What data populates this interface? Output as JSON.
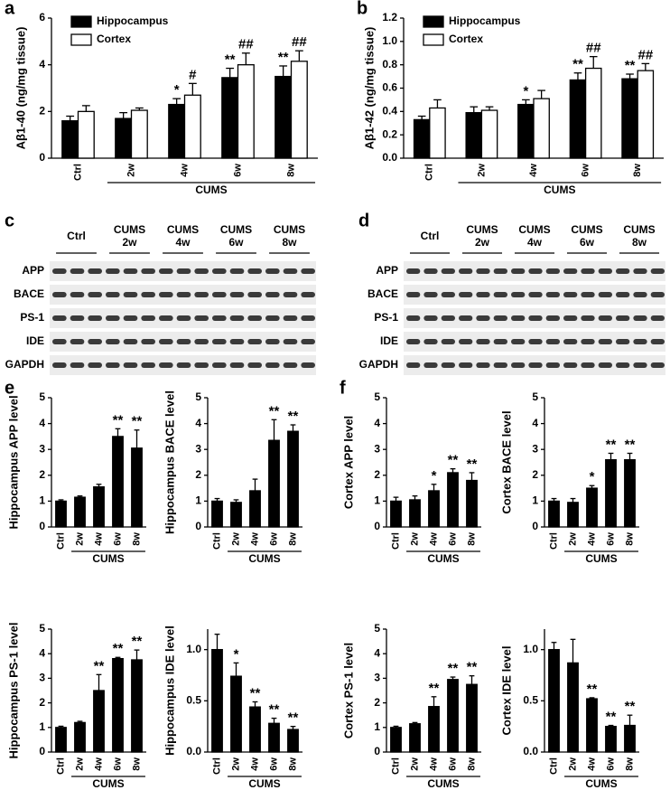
{
  "chart_data": [
    {
      "type": "bar",
      "panel": "a",
      "ylabel": "Aβ1-40 (ng/mg tissue)",
      "categories": [
        "Ctrl",
        "2w",
        "4w",
        "6w",
        "8w"
      ],
      "group_label": "CUMS",
      "ylim": [
        0,
        6
      ],
      "yticks": [
        0,
        2,
        4,
        6
      ],
      "series": [
        {
          "name": "Hippocampus",
          "color": "#000000",
          "values": [
            1.6,
            1.7,
            2.3,
            3.45,
            3.5
          ],
          "errors": [
            0.2,
            0.25,
            0.25,
            0.4,
            0.45
          ],
          "annotations": [
            null,
            null,
            "*",
            "**",
            "**"
          ]
        },
        {
          "name": "Cortex",
          "color": "#ffffff",
          "values": [
            2.0,
            2.05,
            2.7,
            4.0,
            4.15
          ],
          "errors": [
            0.25,
            0.1,
            0.5,
            0.5,
            0.45
          ],
          "annotations": [
            null,
            null,
            "#",
            "##",
            "##"
          ]
        }
      ]
    },
    {
      "type": "bar",
      "panel": "b",
      "ylabel": "Aβ1-42 (ng/mg tissue)",
      "categories": [
        "Ctrl",
        "2w",
        "4w",
        "6w",
        "8w"
      ],
      "group_label": "CUMS",
      "ylim": [
        0,
        1.2
      ],
      "yticks": [
        {
          "value": 0,
          "label": "0.0"
        },
        0.2,
        0.4,
        0.6,
        0.8,
        {
          "value": 1,
          "label": "1.0"
        },
        1.2
      ],
      "series": [
        {
          "name": "Hippocampus",
          "color": "#000000",
          "values": [
            0.33,
            0.39,
            0.46,
            0.67,
            0.68
          ],
          "errors": [
            0.03,
            0.05,
            0.04,
            0.06,
            0.04
          ],
          "annotations": [
            null,
            null,
            "*",
            "**",
            "**"
          ]
        },
        {
          "name": "Cortex",
          "color": "#ffffff",
          "values": [
            0.43,
            0.41,
            0.51,
            0.77,
            0.75
          ],
          "errors": [
            0.07,
            0.03,
            0.07,
            0.1,
            0.06
          ],
          "annotations": [
            null,
            null,
            null,
            "##",
            "##"
          ]
        }
      ]
    },
    {
      "type": "bar",
      "panel": "e",
      "ylabel": "Hippocampus APP level",
      "categories": [
        "Ctrl",
        "2w",
        "4w",
        "6w",
        "8w"
      ],
      "group_label": "CUMS",
      "ylim": [
        0,
        5
      ],
      "yticks": [
        0,
        1,
        2,
        3,
        4,
        5
      ],
      "color": "#000000",
      "values": [
        1.0,
        1.15,
        1.55,
        3.5,
        3.05
      ],
      "errors": [
        0.05,
        0.05,
        0.1,
        0.3,
        0.7
      ],
      "annotations": [
        null,
        null,
        null,
        "**",
        "**"
      ]
    },
    {
      "type": "bar",
      "ylabel": "Hippocampus BACE level",
      "categories": [
        "Ctrl",
        "2w",
        "4w",
        "6w",
        "8w"
      ],
      "group_label": "CUMS",
      "ylim": [
        0,
        5
      ],
      "yticks": [
        0,
        1,
        2,
        3,
        4,
        5
      ],
      "color": "#000000",
      "values": [
        1.0,
        0.95,
        1.4,
        3.35,
        3.7
      ],
      "errors": [
        0.1,
        0.1,
        0.45,
        0.8,
        0.25
      ],
      "annotations": [
        null,
        null,
        null,
        "**",
        "**"
      ]
    },
    {
      "type": "bar",
      "ylabel": "Hippocampus PS-1 level",
      "categories": [
        "Ctrl",
        "2w",
        "4w",
        "6w",
        "8w"
      ],
      "group_label": "CUMS",
      "ylim": [
        0,
        5
      ],
      "yticks": [
        0,
        1,
        2,
        3,
        4,
        5
      ],
      "color": "#000000",
      "values": [
        1.0,
        1.2,
        2.5,
        3.8,
        3.75
      ],
      "errors": [
        0.05,
        0.05,
        0.65,
        0.05,
        0.4
      ],
      "annotations": [
        null,
        null,
        "**",
        "**",
        "**"
      ]
    },
    {
      "type": "bar",
      "ylabel": "Hippocampus IDE level",
      "categories": [
        "Ctrl",
        "2w",
        "4w",
        "6w",
        "8w"
      ],
      "group_label": "CUMS",
      "ylim": [
        0,
        1.2
      ],
      "yticks": [
        {
          "value": 0,
          "label": "0.0"
        },
        0.5,
        {
          "value": 1,
          "label": "1.0"
        }
      ],
      "color": "#000000",
      "values": [
        1.0,
        0.74,
        0.44,
        0.28,
        0.22
      ],
      "errors": [
        0.15,
        0.13,
        0.05,
        0.05,
        0.03
      ],
      "annotations": [
        null,
        "*",
        "**",
        "**",
        "**"
      ]
    },
    {
      "type": "bar",
      "panel": "f",
      "ylabel": "Cortex APP level",
      "categories": [
        "Ctrl",
        "2w",
        "4w",
        "6w",
        "8w"
      ],
      "group_label": "CUMS",
      "ylim": [
        0,
        5
      ],
      "yticks": [
        0,
        1,
        2,
        3,
        4,
        5
      ],
      "color": "#000000",
      "values": [
        1.0,
        1.05,
        1.4,
        2.1,
        1.8
      ],
      "errors": [
        0.15,
        0.15,
        0.25,
        0.15,
        0.3
      ],
      "annotations": [
        null,
        null,
        "*",
        "**",
        "**"
      ]
    },
    {
      "type": "bar",
      "ylabel": "Cortex BACE level",
      "categories": [
        "Ctrl",
        "2w",
        "4w",
        "6w",
        "8w"
      ],
      "group_label": "CUMS",
      "ylim": [
        0,
        5
      ],
      "yticks": [
        0,
        1,
        2,
        3,
        4,
        5
      ],
      "color": "#000000",
      "values": [
        1.0,
        0.95,
        1.5,
        2.6,
        2.6
      ],
      "errors": [
        0.1,
        0.15,
        0.1,
        0.25,
        0.25
      ],
      "annotations": [
        null,
        null,
        "*",
        "**",
        "**"
      ]
    },
    {
      "type": "bar",
      "ylabel": "Cortex PS-1 level",
      "categories": [
        "Ctrl",
        "2w",
        "4w",
        "6w",
        "8w"
      ],
      "group_label": "CUMS",
      "ylim": [
        0,
        5
      ],
      "yticks": [
        0,
        1,
        2,
        3,
        4,
        5
      ],
      "color": "#000000",
      "values": [
        1.0,
        1.15,
        1.85,
        2.95,
        2.75
      ],
      "errors": [
        0.05,
        0.05,
        0.4,
        0.1,
        0.35
      ],
      "annotations": [
        null,
        null,
        "**",
        "**",
        "**"
      ]
    },
    {
      "type": "bar",
      "ylabel": "Cortex IDE level",
      "categories": [
        "Ctrl",
        "2w",
        "4w",
        "6w",
        "8w"
      ],
      "group_label": "CUMS",
      "ylim": [
        0,
        1.2
      ],
      "yticks": [
        {
          "value": 0,
          "label": "0.0"
        },
        0.5,
        {
          "value": 1,
          "label": "1.0"
        }
      ],
      "color": "#000000",
      "values": [
        1.0,
        0.87,
        0.52,
        0.25,
        0.26
      ],
      "errors": [
        0.07,
        0.23,
        0.01,
        0.01,
        0.1
      ],
      "annotations": [
        null,
        null,
        "**",
        "**",
        "**"
      ]
    }
  ],
  "blots": [
    {
      "panel": "c",
      "lanes": [
        [
          "Ctrl"
        ],
        [
          "CUMS",
          "2w"
        ],
        [
          "CUMS",
          "4w"
        ],
        [
          "CUMS",
          "6w"
        ],
        [
          "CUMS",
          "8w"
        ]
      ],
      "rows": [
        "APP",
        "BACE",
        "PS-1",
        "IDE",
        "GAPDH"
      ]
    },
    {
      "panel": "d",
      "lanes": [
        [
          "Ctrl"
        ],
        [
          "CUMS",
          "2w"
        ],
        [
          "CUMS",
          "4w"
        ],
        [
          "CUMS",
          "6w"
        ],
        [
          "CUMS",
          "8w"
        ]
      ],
      "rows": [
        "APP",
        "BACE",
        "PS-1",
        "IDE",
        "GAPDH"
      ]
    }
  ]
}
